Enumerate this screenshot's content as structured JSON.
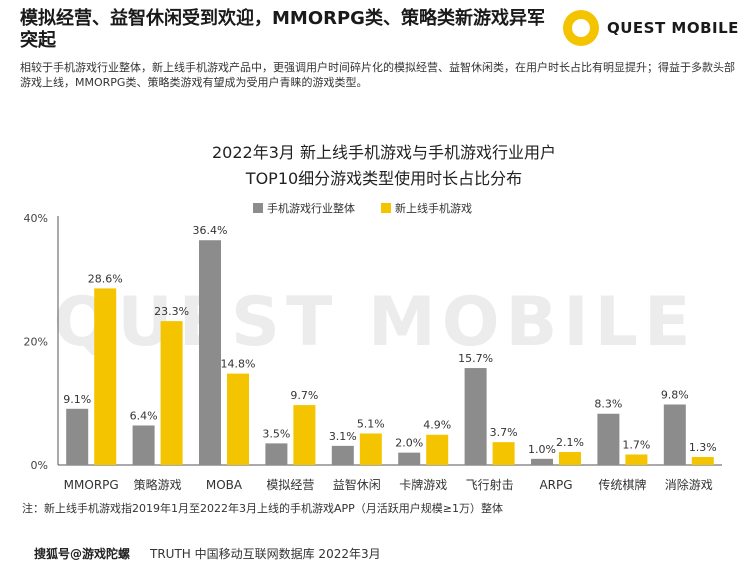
{
  "header": {
    "headline": "模拟经营、益智休闲受到欢迎，MMORPG类、策略类新游戏异军突起",
    "logo_text": "QUEST MOBILE",
    "description": "相较于手机游戏行业整体，新上线手机游戏产品中，更强调用户时间碎片化的模拟经营、益智休闲类，在用户时长占比有明显提升；得益于多款头部游戏上线，MMORPG类、策略类游戏有望成为受用户青睐的游戏类型。"
  },
  "chart_data": {
    "type": "bar",
    "title": "2022年3月 新上线手机游戏与手机游戏行业用户",
    "subtitle": "TOP10细分游戏类型使用时长占比分布",
    "categories": [
      "MMORPG",
      "策略游戏",
      "MOBA",
      "模拟经营",
      "益智休闲",
      "卡牌游戏",
      "飞行射击",
      "ARPG",
      "传统棋牌",
      "消除游戏"
    ],
    "series": [
      {
        "name": "手机游戏行业整体",
        "color": "#8c8c8c",
        "values": [
          9.1,
          6.4,
          36.4,
          3.5,
          3.1,
          2.0,
          15.7,
          1.0,
          8.3,
          9.8
        ]
      },
      {
        "name": "新上线手机游戏",
        "color": "#f5c400",
        "values": [
          28.6,
          23.3,
          14.8,
          9.7,
          5.1,
          4.9,
          3.7,
          2.1,
          1.7,
          1.3
        ]
      }
    ],
    "data_labels": [
      [
        "9.1%",
        "6.4%",
        "36.4%",
        "3.5%",
        "3.1%",
        "2.0%",
        "15.7%",
        "1.0%",
        "8.3%",
        "9.8%"
      ],
      [
        "28.6%",
        "23.3%",
        "14.8%",
        "9.7%",
        "5.1%",
        "4.9%",
        "3.7%",
        "2.1%",
        "1.7%",
        "1.3%"
      ]
    ],
    "yticks": [
      "40%",
      "20%",
      "0%"
    ],
    "ytick_values": [
      40,
      20,
      0
    ],
    "ylim": [
      0,
      40
    ],
    "legend_position": "top",
    "grid": false,
    "watermark": "QUEST MOBILE"
  },
  "footnote": "注：新上线手机游戏指2019年1月至2022年3月上线的手机游戏APP（月活跃用户规模≥1万）整体",
  "source": {
    "left": "搜狐号@游戏陀螺",
    "right": "TRUTH 中国移动互联网数据库 2022年3月"
  }
}
